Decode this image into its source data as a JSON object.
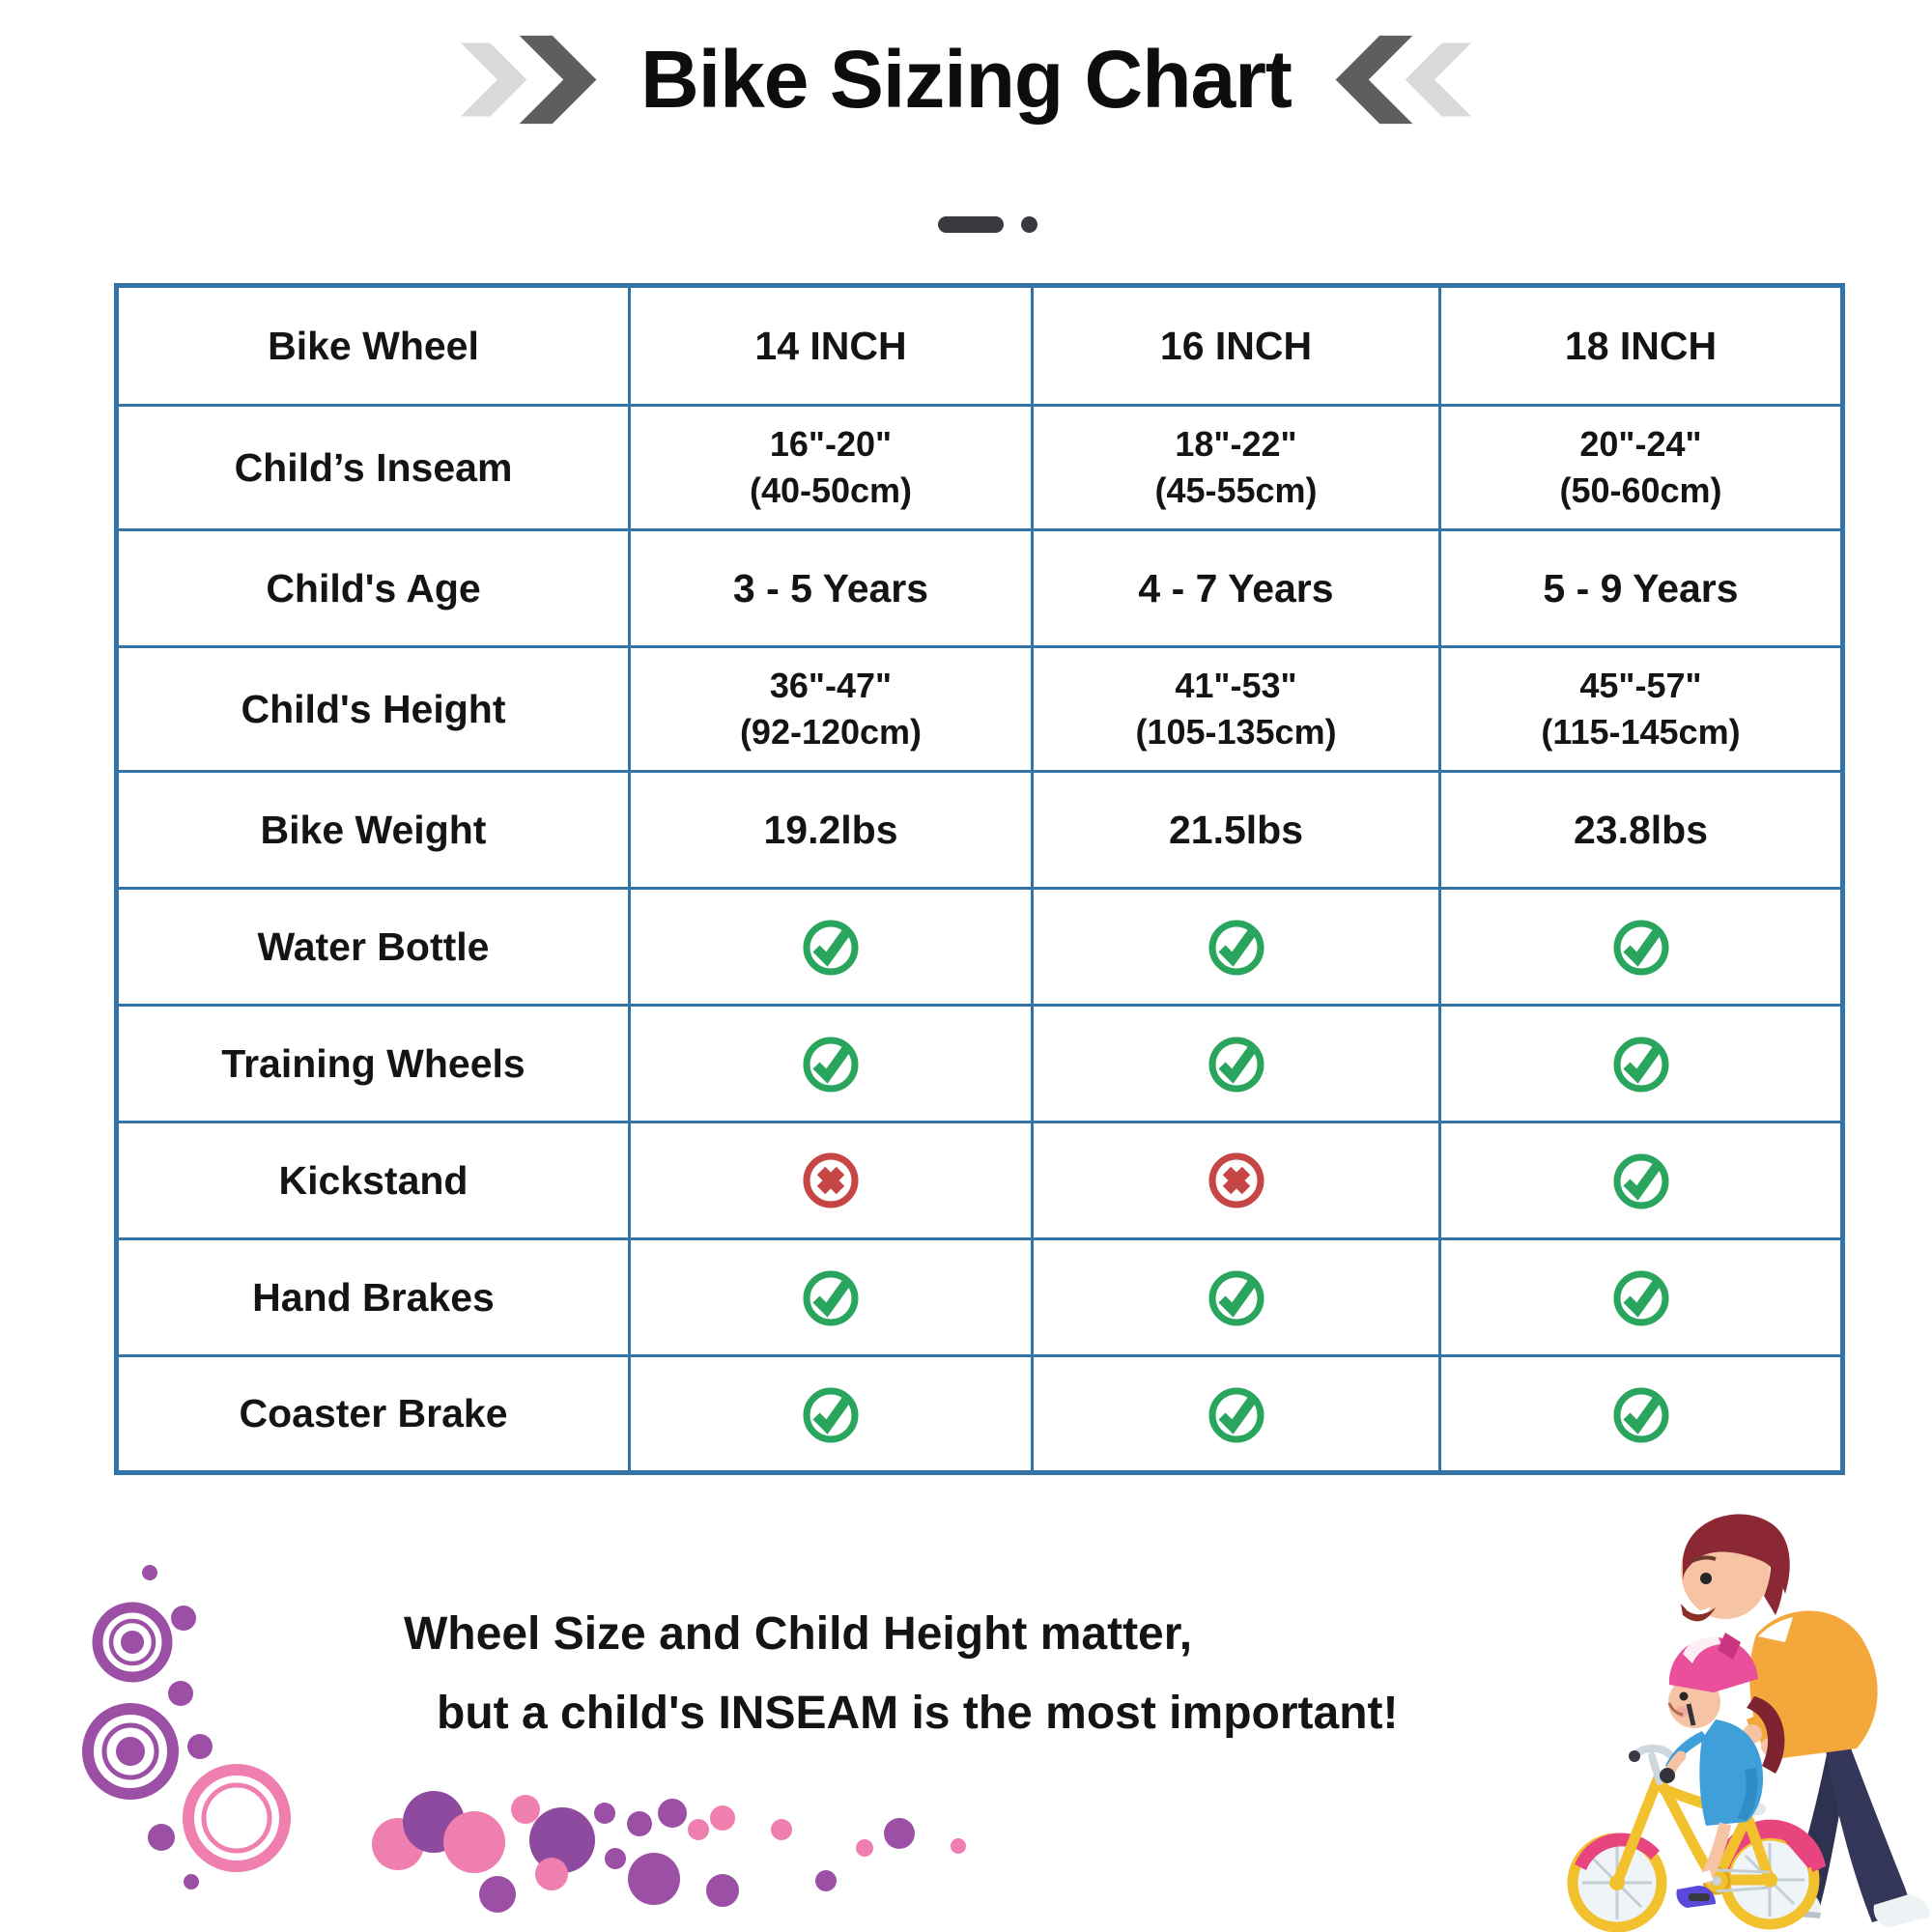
{
  "header": {
    "title": "Bike Sizing Chart"
  },
  "table": {
    "header_row": {
      "label": "Bike Wheel",
      "columns": [
        "14 INCH",
        "16 INCH",
        "18 INCH"
      ]
    },
    "rows": [
      {
        "label": "Child’s Inseam",
        "type": "text",
        "values": [
          "16\"-20\"\n(40-50cm)",
          "18\"-22\"\n(45-55cm)",
          "20\"-24\"\n(50-60cm)"
        ]
      },
      {
        "label": "Child's Age",
        "type": "text",
        "values": [
          "3 - 5 Years",
          "4 - 7 Years",
          "5 - 9 Years"
        ]
      },
      {
        "label": "Child's Height",
        "type": "text",
        "values": [
          "36\"-47\"\n(92-120cm)",
          "41\"-53\"\n(105-135cm)",
          "45\"-57\"\n(115-145cm)"
        ]
      },
      {
        "label": "Bike Weight",
        "type": "text",
        "values": [
          "19.2lbs",
          "21.5lbs",
          "23.8lbs"
        ]
      },
      {
        "label": "Water Bottle",
        "type": "icon",
        "values": [
          "check",
          "check",
          "check"
        ]
      },
      {
        "label": "Training Wheels",
        "type": "icon",
        "values": [
          "check",
          "check",
          "check"
        ]
      },
      {
        "label": "Kickstand",
        "type": "icon",
        "values": [
          "cross",
          "cross",
          "check"
        ]
      },
      {
        "label": "Hand Brakes",
        "type": "icon",
        "values": [
          "check",
          "check",
          "check"
        ]
      },
      {
        "label": "Coaster Brake",
        "type": "icon",
        "values": [
          "check",
          "check",
          "check"
        ]
      }
    ]
  },
  "footer": {
    "line1": "Wheel Size and Child Height matter,",
    "line2": "but a child's INSEAM is the most important!"
  },
  "icons": {
    "yes": "check-icon",
    "no": "cross-icon"
  },
  "colors": {
    "table_border": "#3273a8",
    "check_green": "#2aa55e",
    "cross_red": "#c64545",
    "chevron_light": "#d9d9d9",
    "chevron_dark": "#5e5e5e",
    "accent_purple": "#9b4fa5",
    "accent_pink": "#ef7fae"
  },
  "chart_data": {
    "type": "table",
    "title": "Bike Sizing Chart",
    "columns": [
      "Bike Wheel",
      "14 INCH",
      "16 INCH",
      "18 INCH"
    ],
    "rows": [
      [
        "Child's Inseam",
        "16\"-20\" (40-50cm)",
        "18\"-22\" (45-55cm)",
        "20\"-24\" (50-60cm)"
      ],
      [
        "Child's Age",
        "3 - 5 Years",
        "4 - 7 Years",
        "5 - 9 Years"
      ],
      [
        "Child's Height",
        "36\"-47\" (92-120cm)",
        "41\"-53\" (105-135cm)",
        "45\"-57\" (115-145cm)"
      ],
      [
        "Bike Weight",
        "19.2lbs",
        "21.5lbs",
        "23.8lbs"
      ],
      [
        "Water Bottle",
        "yes",
        "yes",
        "yes"
      ],
      [
        "Training Wheels",
        "yes",
        "yes",
        "yes"
      ],
      [
        "Kickstand",
        "no",
        "no",
        "yes"
      ],
      [
        "Hand Brakes",
        "yes",
        "yes",
        "yes"
      ],
      [
        "Coaster Brake",
        "yes",
        "yes",
        "yes"
      ]
    ],
    "note": "Wheel Size and Child Height matter, but a child's INSEAM is the most important!"
  }
}
